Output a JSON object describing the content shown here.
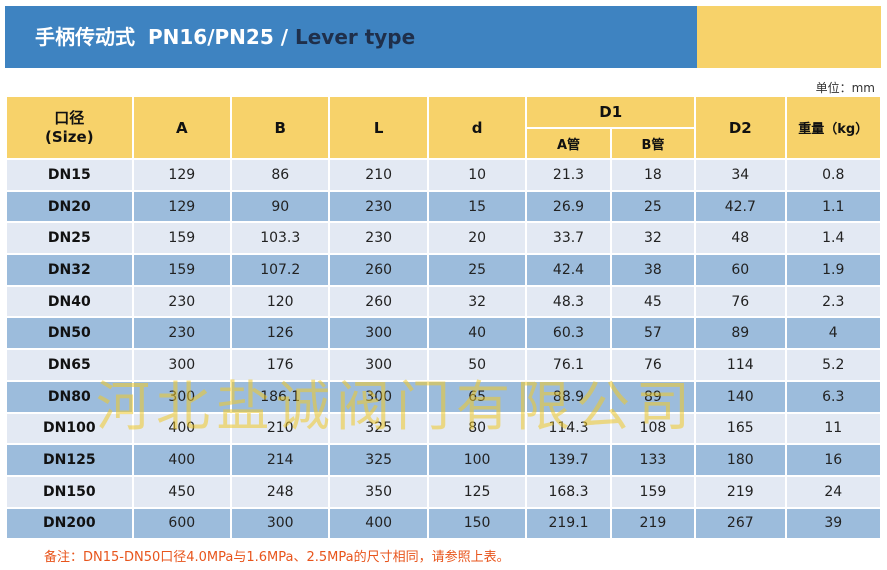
{
  "header": {
    "title_cn": "手柄传动式",
    "title_pn": "PN16/PN25 /",
    "title_en": "Lever type"
  },
  "unit_label": "单位：mm",
  "table": {
    "headers": {
      "size_line1": "口径",
      "size_line2": "(Size)",
      "A": "A",
      "B": "B",
      "L": "L",
      "d": "d",
      "D1": "D1",
      "D1_a": "A管",
      "D1_b": "B管",
      "D2": "D2",
      "weight": "重量（kg）"
    },
    "rows": [
      {
        "dn": "DN15",
        "A": "129",
        "B": "86",
        "L": "210",
        "d": "10",
        "D1a": "21.3",
        "D1b": "18",
        "D2": "34",
        "w": "0.8"
      },
      {
        "dn": "DN20",
        "A": "129",
        "B": "90",
        "L": "230",
        "d": "15",
        "D1a": "26.9",
        "D1b": "25",
        "D2": "42.7",
        "w": "1.1"
      },
      {
        "dn": "DN25",
        "A": "159",
        "B": "103.3",
        "L": "230",
        "d": "20",
        "D1a": "33.7",
        "D1b": "32",
        "D2": "48",
        "w": "1.4"
      },
      {
        "dn": "DN32",
        "A": "159",
        "B": "107.2",
        "L": "260",
        "d": "25",
        "D1a": "42.4",
        "D1b": "38",
        "D2": "60",
        "w": "1.9"
      },
      {
        "dn": "DN40",
        "A": "230",
        "B": "120",
        "L": "260",
        "d": "32",
        "D1a": "48.3",
        "D1b": "45",
        "D2": "76",
        "w": "2.3"
      },
      {
        "dn": "DN50",
        "A": "230",
        "B": "126",
        "L": "300",
        "d": "40",
        "D1a": "60.3",
        "D1b": "57",
        "D2": "89",
        "w": "4"
      },
      {
        "dn": "DN65",
        "A": "300",
        "B": "176",
        "L": "300",
        "d": "50",
        "D1a": "76.1",
        "D1b": "76",
        "D2": "114",
        "w": "5.2"
      },
      {
        "dn": "DN80",
        "A": "300",
        "B": "186.1",
        "L": "300",
        "d": "65",
        "D1a": "88.9",
        "D1b": "89",
        "D2": "140",
        "w": "6.3"
      },
      {
        "dn": "DN100",
        "A": "400",
        "B": "210",
        "L": "325",
        "d": "80",
        "D1a": "114.3",
        "D1b": "108",
        "D2": "165",
        "w": "11"
      },
      {
        "dn": "DN125",
        "A": "400",
        "B": "214",
        "L": "325",
        "d": "100",
        "D1a": "139.7",
        "D1b": "133",
        "D2": "180",
        "w": "16"
      },
      {
        "dn": "DN150",
        "A": "450",
        "B": "248",
        "L": "350",
        "d": "125",
        "D1a": "168.3",
        "D1b": "159",
        "D2": "219",
        "w": "24"
      },
      {
        "dn": "DN200",
        "A": "600",
        "B": "300",
        "L": "400",
        "d": "150",
        "D1a": "219.1",
        "D1b": "219",
        "D2": "267",
        "w": "39"
      }
    ]
  },
  "watermark": "河北盐诚阀门有限公司",
  "note": "备注：DN15-DN50口径4.0MPa与1.6MPa、2.5MPa的尺寸相同，请参照上表。",
  "colors": {
    "banner_blue": "#3e83c1",
    "accent_yellow": "#f7d26a",
    "row_light": "#e3e9f3",
    "row_dark": "#9cbcdc",
    "note_orange": "#e8551c"
  }
}
